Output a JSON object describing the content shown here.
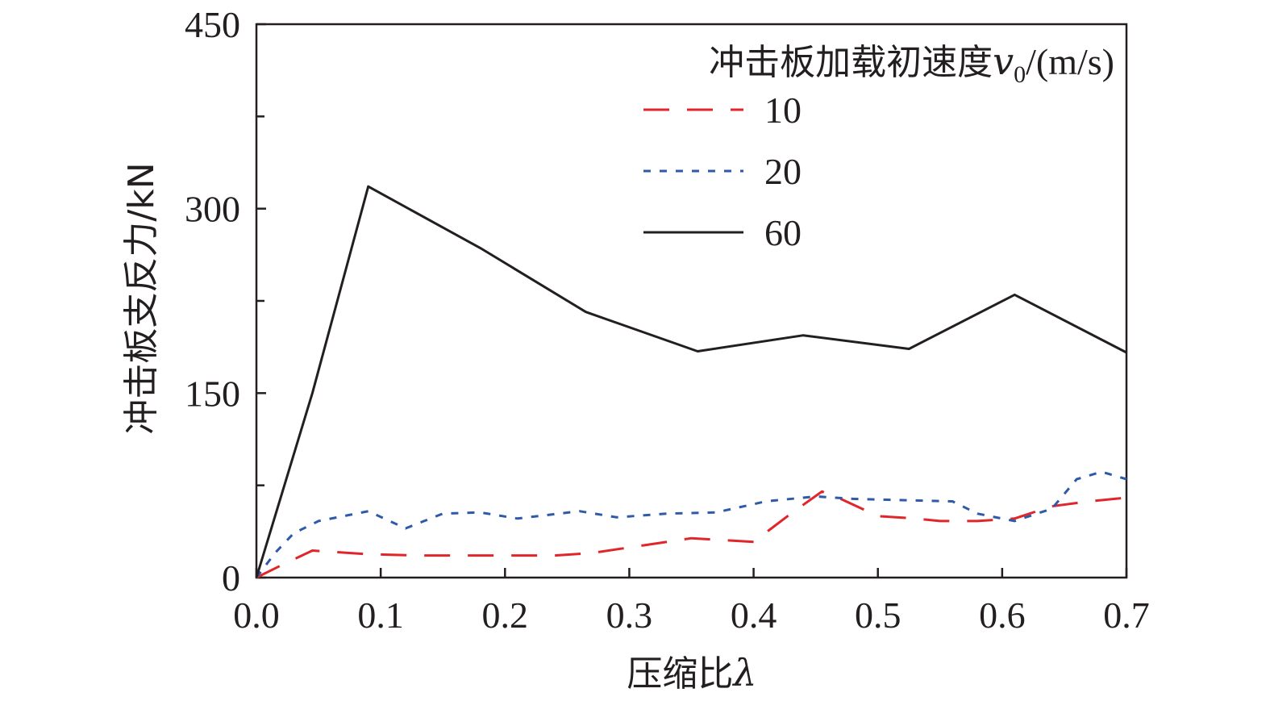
{
  "chart_data": {
    "type": "line",
    "xlabel": "压缩比",
    "xlabel_symbol": "λ",
    "ylabel": "冲击板支反力/kN",
    "xlim": [
      0.0,
      0.7
    ],
    "ylim": [
      0,
      450
    ],
    "x_ticks": [
      "0.0",
      "0.1",
      "0.2",
      "0.3",
      "0.4",
      "0.5",
      "0.6",
      "0.7"
    ],
    "y_ticks": [
      "0",
      "150",
      "300",
      "450"
    ],
    "y_minor_ticks": [
      75,
      225,
      375
    ],
    "grid": false,
    "legend": {
      "title": "冲击板加载初速度",
      "title_symbol": "v",
      "title_subscript": "0",
      "title_unit": "/(m/s)",
      "placement": "top-right"
    },
    "series": [
      {
        "name": "10",
        "color": "#e0262b",
        "style": "dashed",
        "x": [
          0.0,
          0.02,
          0.045,
          0.09,
          0.13,
          0.18,
          0.24,
          0.27,
          0.31,
          0.35,
          0.4,
          0.43,
          0.455,
          0.47,
          0.5,
          0.53,
          0.55,
          0.58,
          0.61,
          0.64,
          0.67,
          0.7
        ],
        "y": [
          0,
          10,
          22,
          19,
          18,
          18,
          18,
          20,
          26,
          32,
          29,
          52,
          70,
          64,
          50,
          48,
          46,
          46,
          48,
          58,
          62,
          65
        ]
      },
      {
        "name": "20",
        "color": "#2e5aa8",
        "style": "dotted",
        "x": [
          0.0,
          0.015,
          0.03,
          0.05,
          0.09,
          0.12,
          0.15,
          0.18,
          0.21,
          0.26,
          0.29,
          0.33,
          0.37,
          0.41,
          0.45,
          0.48,
          0.52,
          0.56,
          0.58,
          0.61,
          0.64,
          0.66,
          0.68,
          0.7
        ],
        "y": [
          0,
          20,
          36,
          46,
          54,
          40,
          52,
          53,
          48,
          54,
          49,
          52,
          53,
          62,
          66,
          64,
          63,
          62,
          52,
          46,
          56,
          80,
          86,
          80
        ]
      },
      {
        "name": "60",
        "color": "#231f20",
        "style": "solid",
        "x": [
          0.0,
          0.045,
          0.09,
          0.18,
          0.265,
          0.355,
          0.44,
          0.525,
          0.61,
          0.7
        ],
        "y": [
          0,
          150,
          318,
          268,
          216,
          184,
          197,
          186,
          230,
          183
        ]
      }
    ]
  }
}
